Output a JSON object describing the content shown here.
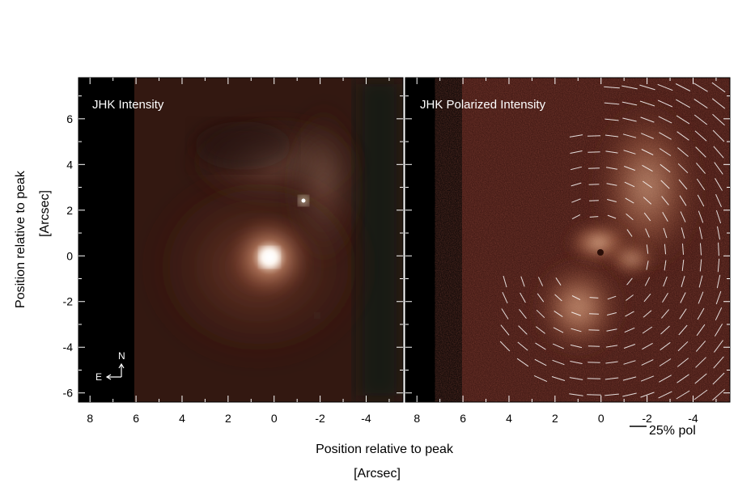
{
  "figure": {
    "left_panel": {
      "title": "JHK Intensity",
      "compass": {
        "north_label": "N",
        "east_label": "E"
      }
    },
    "right_panel": {
      "title": "JHK Polarized Intensity",
      "scale_bar_label": "25% pol",
      "scale_bar_percent": 25
    },
    "y_axis": {
      "label_line1": "Position relative to peak",
      "label_line2": "[Arcsec]",
      "ticks": [
        "6",
        "4",
        "2",
        "0",
        "-2",
        "-4",
        "-6"
      ],
      "range": [
        -6.4,
        7.8
      ]
    },
    "x_axis": {
      "label_line1": "Position relative to peak",
      "label_line2": "[Arcsec]",
      "left_ticks": [
        "8",
        "6",
        "4",
        "2",
        "0",
        "-2",
        "-4"
      ],
      "right_ticks": [
        "8",
        "6",
        "4",
        "2",
        "0",
        "-2",
        "-4"
      ],
      "range": [
        8.5,
        -5.6
      ]
    },
    "colors": {
      "background_sky": "#000000",
      "nebula_warm": "#c08a70",
      "nebula_dark_red": "#4a1a12",
      "core": "#fff4ea",
      "vectors": "#ffffff"
    }
  }
}
